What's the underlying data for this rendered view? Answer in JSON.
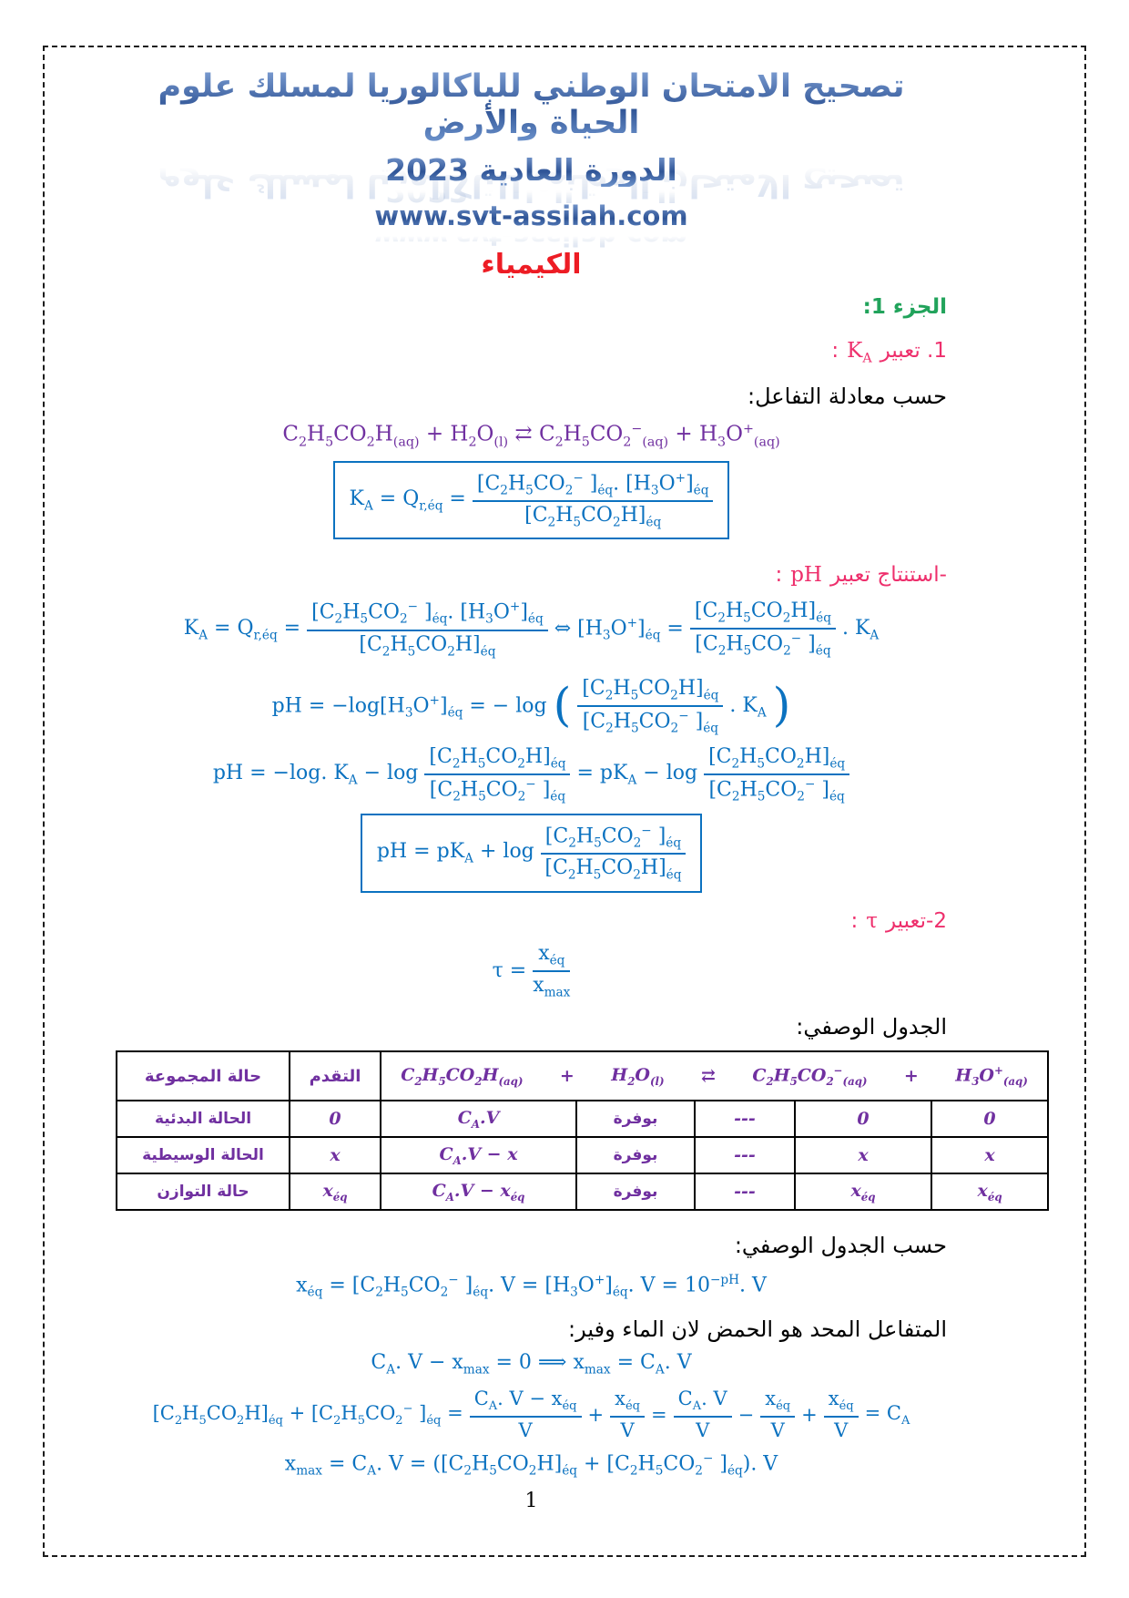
{
  "header": {
    "title_line1": "تصحيح الامتحان الوطني للباكالوريا لمسلك علوم الحياة والأرض",
    "title_line2": "الدورة العادية 2023",
    "website": "www.svt-assilah.com"
  },
  "subject_title": "الكيمياء",
  "part1_heading": "الجزء 1:",
  "q1_heading": {
    "pre": "1. تعبير",
    "sym": "K_{A}",
    "post": ":"
  },
  "line_equation_intro": "حسب معادلة التفاعل:",
  "reaction_equation": "C_{2}H_{5}CO_{2}H_{(aq)} + H_{2}O_{(l)} ⇄ C_{2}H_{5}CO_{2}^{−}_{(aq)} + H_{3}O^{+}_{(aq)}",
  "ka_box": {
    "lhs": "K_{A} = Q_{r,éq} =",
    "num": "[C_{2}H_{5}CO_{2}^{−} ]_{éq}. [H_{3}O^{+}]_{éq}",
    "den": "[C_{2}H_{5}CO_{2}H]_{éq}"
  },
  "ph_heading": {
    "pre": "-استنتاج تعبير",
    "sym": "pH",
    "post": ":"
  },
  "ph_line1": {
    "lhs": "K_{A} = Q_{r,éq} =",
    "f1num": "[C_{2}H_{5}CO_{2}^{−} ]_{éq}. [H_{3}O^{+}]_{éq}",
    "f1den": "[C_{2}H_{5}CO_{2}H]_{éq}",
    "mid": "⇔ [H_{3}O^{+}]_{éq} =",
    "f2num": "[C_{2}H_{5}CO_{2}H]_{éq}",
    "f2den": "[C_{2}H_{5}CO_{2}^{−} ]_{éq}",
    "rhs": ". K_{A}"
  },
  "ph_line2": {
    "lhs": "pH = −log[H_{3}O^{+}]_{éq} = − log",
    "fnum": "[C_{2}H_{5}CO_{2}H]_{éq}",
    "fden": "[C_{2}H_{5}CO_{2}^{−} ]_{éq}",
    "rhs": ". K_{A}",
    "lparen": "(",
    "rparen": ")"
  },
  "ph_line3": {
    "lhs": "pH = −log. K_{A} − log",
    "f1num": "[C_{2}H_{5}CO_{2}H]_{éq}",
    "f1den": "[C_{2}H_{5}CO_{2}^{−} ]_{éq}",
    "mid": "= pK_{A} − log",
    "f2num": "[C_{2}H_{5}CO_{2}H]_{éq}",
    "f2den": "[C_{2}H_{5}CO_{2}^{−} ]_{éq}"
  },
  "ph_box": {
    "lhs": "pH = pK_{A} + log",
    "num": "[C_{2}H_{5}CO_{2}^{−} ]_{éq}",
    "den": "[C_{2}H_{5}CO_{2}H]_{éq}"
  },
  "tau_heading": {
    "pre": "2-تعبير",
    "sym": "τ",
    "post": ":"
  },
  "tau_formula": {
    "lhs": "τ =",
    "num": "x_{éq}",
    "den": "x_{max}"
  },
  "table_heading": "الجدول الوصفي:",
  "table": {
    "col_state": "حالة المجموعة",
    "col_advance": "التقدم",
    "eq": {
      "acid": "C_{2}H_{5}CO_{2}H_{(aq)}",
      "plus1": "+",
      "water": "H_{2}O_{(l)}",
      "arrows": "⇄",
      "base": "C_{2}H_{5}CO_{2}^{−}_{(aq)}",
      "plus2": "+",
      "h3o": "H_{3}O^{+}_{(aq)}"
    },
    "rows": [
      {
        "state": "الحالة البدئية",
        "advance": "0",
        "acid": "C_{A}.V",
        "water": "بوفرة",
        "arrow": "---",
        "base": "0",
        "h3o": "0"
      },
      {
        "state": "الحالة الوسيطية",
        "advance": "x",
        "acid": "C_{A}.V − x",
        "water": "بوفرة",
        "arrow": "---",
        "base": "x",
        "h3o": "x"
      },
      {
        "state": "حالة التوازن",
        "advance": "x_{éq}",
        "acid": "C_{A}.V − x_{éq}",
        "water": "بوفرة",
        "arrow": "---",
        "base": "x_{éq}",
        "h3o": "x_{éq}"
      }
    ]
  },
  "line_table_intro": "حسب الجدول الوصفي:",
  "xeq_formula": "x_{éq} = [C_{2}H_{5}CO_{2}^{−} ]_{éq}. V = [H_{3}O^{+}]_{éq}. V = 10^{−pH}. V",
  "limiting_line": "المتفاعل المحد هو الحمض لان الماء وفير:",
  "xmax_line1": "C_{A}. V − x_{max} = 0 ⟹ x_{max} = C_{A}. V",
  "sum_line": {
    "lhs": "[C_{2}H_{5}CO_{2}H]_{éq} + [C_{2}H_{5}CO_{2}^{−} ]_{éq} =",
    "f1num": "C_{A}. V − x_{éq}",
    "f1den": "V",
    "op1": "+",
    "f2num": "x_{éq}",
    "f2den": "V",
    "op2": "=",
    "f3num": "C_{A}. V",
    "f3den": "V",
    "op3": "−",
    "f4num": "x_{éq}",
    "f4den": "V",
    "op4": "+",
    "f5num": "x_{éq}",
    "f5den": "V",
    "rhs": "= C_{A}"
  },
  "xmax_line2": "x_{max} = C_{A}. V = ([C_{2}H_{5}CO_{2}H]_{éq} + [C_{2}H_{5}CO_{2}^{−} ]_{éq}). V",
  "page_number": "1",
  "colors": {
    "math_blue": "#0b72c0",
    "chem_purple": "#7030a0",
    "heading_pink": "#ee2f6c",
    "part_green": "#21a35b",
    "subject_red": "#ed1c24",
    "header_blue": "#3d64ab"
  }
}
